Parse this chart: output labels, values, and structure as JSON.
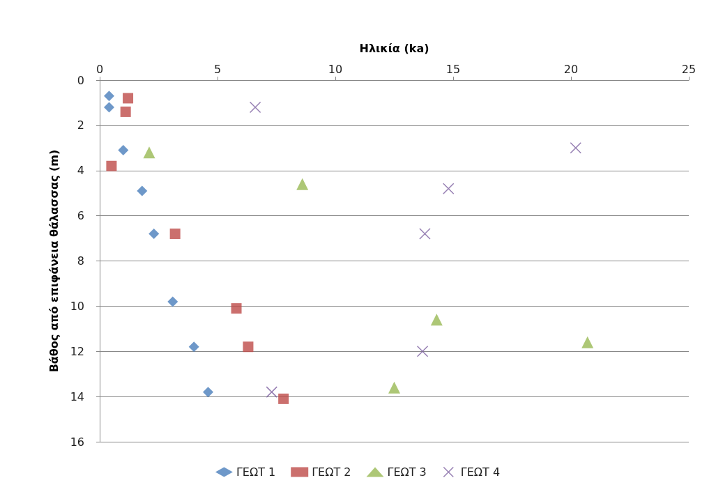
{
  "chart_data": {
    "type": "scatter",
    "xlabel": "Ηλικία (ka)",
    "ylabel": "Βάθος από επιφάνεια θάλασσας (m)",
    "xlim": [
      0,
      25
    ],
    "xticks": [
      0,
      5,
      10,
      15,
      20,
      25
    ],
    "ylim": [
      16,
      0
    ],
    "yticks": [
      0,
      2,
      4,
      6,
      8,
      10,
      12,
      14,
      16
    ],
    "grid": "y",
    "legend": "bottom",
    "series": [
      {
        "name": "ΓΕΩΤ 1",
        "color": "#4a7ebb",
        "marker": "diamond",
        "x": [
          0.4,
          0.4,
          1.0,
          1.8,
          2.3,
          3.1,
          4.0,
          4.6
        ],
        "values": [
          0.7,
          1.2,
          3.1,
          4.9,
          6.8,
          9.8,
          11.8,
          13.8
        ]
      },
      {
        "name": "ΓΕΩΤ 2",
        "color": "#be4b48",
        "marker": "square",
        "x": [
          1.2,
          1.1,
          0.5,
          3.2,
          5.8,
          6.3,
          7.8
        ],
        "values": [
          0.8,
          1.4,
          3.8,
          6.8,
          10.1,
          11.8,
          14.1
        ]
      },
      {
        "name": "ΓΕΩΤ 3",
        "color": "#98b954",
        "marker": "triangle",
        "x": [
          2.1,
          8.6,
          14.3,
          20.7,
          12.5
        ],
        "values": [
          3.2,
          4.6,
          10.6,
          11.6,
          13.6
        ]
      },
      {
        "name": "ΓΕΩΤ 4",
        "color": "#7d60a0",
        "marker": "cross",
        "x": [
          6.6,
          20.2,
          14.8,
          13.8,
          13.7,
          7.3
        ],
        "values": [
          1.2,
          3.0,
          4.8,
          6.8,
          12.0,
          13.8
        ]
      }
    ]
  }
}
